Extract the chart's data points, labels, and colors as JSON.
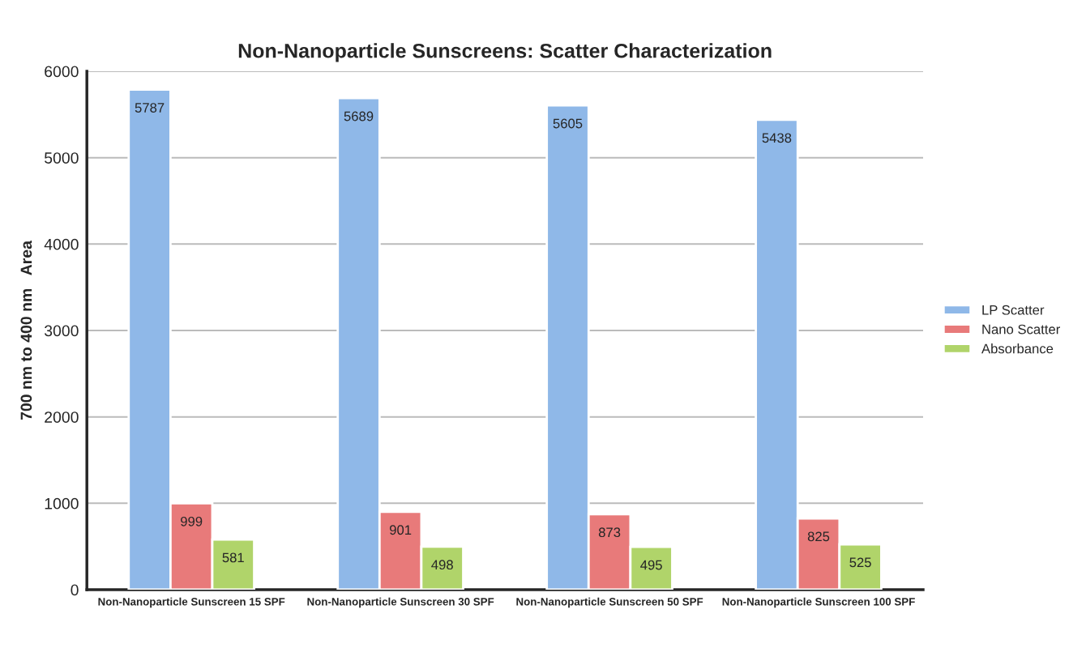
{
  "chart_data": {
    "type": "bar",
    "title": "Non-Nanoparticle Sunscreens: Scatter Characterization",
    "ylabel": "700 nm to 400 nm   Area",
    "categories": [
      "Non-Nanoparticle Sunscreen 15 SPF",
      "Non-Nanoparticle Sunscreen 30 SPF",
      "Non-Nanoparticle Sunscreen 50 SPF",
      "Non-Nanoparticle Sunscreen 100 SPF"
    ],
    "series": [
      {
        "name": "LP Scatter",
        "color": "#8fb8e8",
        "values": [
          5787,
          5689,
          5605,
          5438
        ]
      },
      {
        "name": "Nano Scatter",
        "color": "#e87a7a",
        "values": [
          999,
          901,
          873,
          825
        ]
      },
      {
        "name": "Absorbance",
        "color": "#b0d46a",
        "values": [
          581,
          498,
          495,
          525
        ]
      }
    ],
    "ylim": [
      0,
      6000
    ],
    "yticks": [
      0,
      1000,
      2000,
      3000,
      4000,
      5000,
      6000
    ],
    "grid": "y",
    "legend": "right",
    "data_labels": true
  }
}
